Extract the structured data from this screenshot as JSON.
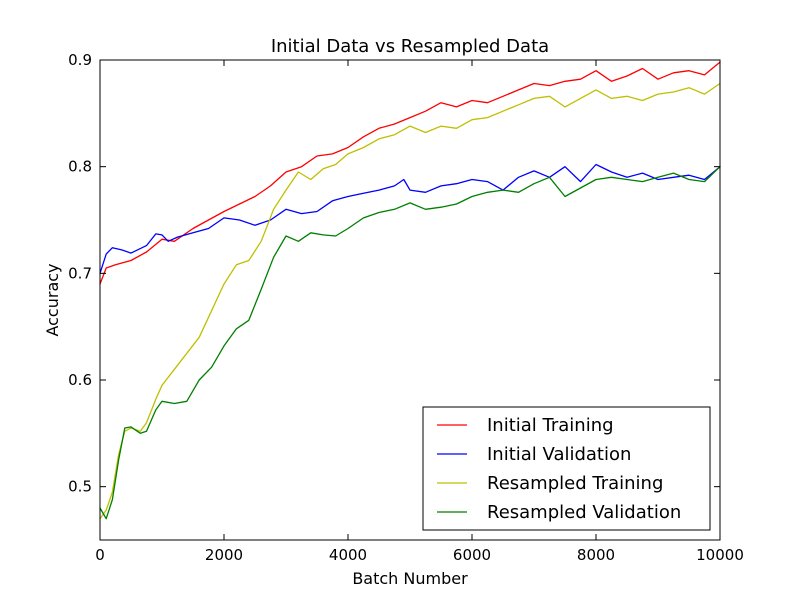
{
  "chart_data": {
    "type": "line",
    "title": "Initial Data vs Resampled Data",
    "xlabel": "Batch Number",
    "ylabel": "Accuracy",
    "xlim": [
      0,
      10000
    ],
    "ylim": [
      0.45,
      0.9
    ],
    "x_ticks": [
      0,
      2000,
      4000,
      6000,
      8000,
      10000
    ],
    "x_tick_labels": [
      "0",
      "2000",
      "4000",
      "6000",
      "8000",
      "10000"
    ],
    "y_ticks": [
      0.5,
      0.6,
      0.7,
      0.8,
      0.9
    ],
    "y_tick_labels": [
      "0.5",
      "0.6",
      "0.7",
      "0.8",
      "0.9"
    ],
    "grid": false,
    "legend_position": "lower-right",
    "series": [
      {
        "name": "Initial Training",
        "color": "#ff0000",
        "points": [
          [
            0,
            0.69
          ],
          [
            100,
            0.705
          ],
          [
            250,
            0.708
          ],
          [
            500,
            0.712
          ],
          [
            750,
            0.72
          ],
          [
            1000,
            0.732
          ],
          [
            1200,
            0.73
          ],
          [
            1500,
            0.742
          ],
          [
            1750,
            0.75
          ],
          [
            2000,
            0.758
          ],
          [
            2250,
            0.765
          ],
          [
            2500,
            0.772
          ],
          [
            2750,
            0.782
          ],
          [
            3000,
            0.795
          ],
          [
            3250,
            0.8
          ],
          [
            3500,
            0.81
          ],
          [
            3750,
            0.812
          ],
          [
            4000,
            0.818
          ],
          [
            4250,
            0.828
          ],
          [
            4500,
            0.836
          ],
          [
            4750,
            0.84
          ],
          [
            5000,
            0.846
          ],
          [
            5250,
            0.852
          ],
          [
            5500,
            0.86
          ],
          [
            5750,
            0.856
          ],
          [
            6000,
            0.862
          ],
          [
            6250,
            0.86
          ],
          [
            6500,
            0.866
          ],
          [
            6750,
            0.872
          ],
          [
            7000,
            0.878
          ],
          [
            7250,
            0.876
          ],
          [
            7500,
            0.88
          ],
          [
            7750,
            0.882
          ],
          [
            8000,
            0.89
          ],
          [
            8250,
            0.88
          ],
          [
            8500,
            0.885
          ],
          [
            8750,
            0.892
          ],
          [
            9000,
            0.882
          ],
          [
            9250,
            0.888
          ],
          [
            9500,
            0.89
          ],
          [
            9750,
            0.886
          ],
          [
            10000,
            0.898
          ]
        ]
      },
      {
        "name": "Initial Validation",
        "color": "#0000ff",
        "points": [
          [
            0,
            0.7
          ],
          [
            100,
            0.718
          ],
          [
            200,
            0.724
          ],
          [
            350,
            0.722
          ],
          [
            500,
            0.719
          ],
          [
            750,
            0.726
          ],
          [
            900,
            0.737
          ],
          [
            1000,
            0.736
          ],
          [
            1100,
            0.73
          ],
          [
            1250,
            0.734
          ],
          [
            1500,
            0.738
          ],
          [
            1750,
            0.742
          ],
          [
            2000,
            0.752
          ],
          [
            2250,
            0.75
          ],
          [
            2500,
            0.745
          ],
          [
            2750,
            0.75
          ],
          [
            3000,
            0.76
          ],
          [
            3250,
            0.756
          ],
          [
            3500,
            0.758
          ],
          [
            3750,
            0.768
          ],
          [
            4000,
            0.772
          ],
          [
            4250,
            0.775
          ],
          [
            4500,
            0.778
          ],
          [
            4750,
            0.782
          ],
          [
            4900,
            0.788
          ],
          [
            5000,
            0.778
          ],
          [
            5250,
            0.776
          ],
          [
            5500,
            0.782
          ],
          [
            5750,
            0.784
          ],
          [
            6000,
            0.788
          ],
          [
            6250,
            0.786
          ],
          [
            6500,
            0.778
          ],
          [
            6750,
            0.79
          ],
          [
            7000,
            0.796
          ],
          [
            7250,
            0.79
          ],
          [
            7500,
            0.8
          ],
          [
            7750,
            0.786
          ],
          [
            8000,
            0.802
          ],
          [
            8250,
            0.795
          ],
          [
            8500,
            0.79
          ],
          [
            8750,
            0.794
          ],
          [
            9000,
            0.788
          ],
          [
            9250,
            0.79
          ],
          [
            9500,
            0.792
          ],
          [
            9750,
            0.788
          ],
          [
            10000,
            0.8
          ]
        ]
      },
      {
        "name": "Resampled Training",
        "color": "#bfbf00",
        "points": [
          [
            0,
            0.47
          ],
          [
            100,
            0.478
          ],
          [
            200,
            0.495
          ],
          [
            300,
            0.53
          ],
          [
            400,
            0.552
          ],
          [
            500,
            0.555
          ],
          [
            650,
            0.552
          ],
          [
            750,
            0.56
          ],
          [
            900,
            0.582
          ],
          [
            1000,
            0.595
          ],
          [
            1200,
            0.61
          ],
          [
            1400,
            0.625
          ],
          [
            1600,
            0.64
          ],
          [
            1800,
            0.665
          ],
          [
            2000,
            0.69
          ],
          [
            2200,
            0.708
          ],
          [
            2400,
            0.712
          ],
          [
            2600,
            0.73
          ],
          [
            2800,
            0.76
          ],
          [
            3000,
            0.778
          ],
          [
            3200,
            0.795
          ],
          [
            3400,
            0.788
          ],
          [
            3600,
            0.798
          ],
          [
            3800,
            0.802
          ],
          [
            4000,
            0.812
          ],
          [
            4250,
            0.818
          ],
          [
            4500,
            0.826
          ],
          [
            4750,
            0.83
          ],
          [
            5000,
            0.838
          ],
          [
            5250,
            0.832
          ],
          [
            5500,
            0.838
          ],
          [
            5750,
            0.836
          ],
          [
            6000,
            0.844
          ],
          [
            6250,
            0.846
          ],
          [
            6500,
            0.852
          ],
          [
            6750,
            0.858
          ],
          [
            7000,
            0.864
          ],
          [
            7250,
            0.866
          ],
          [
            7500,
            0.856
          ],
          [
            7750,
            0.864
          ],
          [
            8000,
            0.872
          ],
          [
            8250,
            0.864
          ],
          [
            8500,
            0.866
          ],
          [
            8750,
            0.862
          ],
          [
            9000,
            0.868
          ],
          [
            9250,
            0.87
          ],
          [
            9500,
            0.874
          ],
          [
            9750,
            0.868
          ],
          [
            10000,
            0.878
          ]
        ]
      },
      {
        "name": "Resampled Validation",
        "color": "#007f00",
        "points": [
          [
            0,
            0.48
          ],
          [
            100,
            0.47
          ],
          [
            200,
            0.488
          ],
          [
            300,
            0.525
          ],
          [
            400,
            0.555
          ],
          [
            500,
            0.556
          ],
          [
            650,
            0.55
          ],
          [
            750,
            0.552
          ],
          [
            900,
            0.572
          ],
          [
            1000,
            0.58
          ],
          [
            1200,
            0.578
          ],
          [
            1400,
            0.58
          ],
          [
            1600,
            0.6
          ],
          [
            1800,
            0.612
          ],
          [
            2000,
            0.632
          ],
          [
            2200,
            0.648
          ],
          [
            2400,
            0.656
          ],
          [
            2600,
            0.685
          ],
          [
            2800,
            0.715
          ],
          [
            3000,
            0.735
          ],
          [
            3200,
            0.73
          ],
          [
            3400,
            0.738
          ],
          [
            3600,
            0.736
          ],
          [
            3800,
            0.735
          ],
          [
            4000,
            0.742
          ],
          [
            4250,
            0.752
          ],
          [
            4500,
            0.757
          ],
          [
            4750,
            0.76
          ],
          [
            5000,
            0.766
          ],
          [
            5250,
            0.76
          ],
          [
            5500,
            0.762
          ],
          [
            5750,
            0.765
          ],
          [
            6000,
            0.772
          ],
          [
            6250,
            0.776
          ],
          [
            6500,
            0.778
          ],
          [
            6750,
            0.776
          ],
          [
            7000,
            0.784
          ],
          [
            7250,
            0.79
          ],
          [
            7500,
            0.772
          ],
          [
            7750,
            0.78
          ],
          [
            8000,
            0.788
          ],
          [
            8250,
            0.79
          ],
          [
            8500,
            0.788
          ],
          [
            8750,
            0.786
          ],
          [
            9000,
            0.79
          ],
          [
            9250,
            0.794
          ],
          [
            9500,
            0.788
          ],
          [
            9750,
            0.786
          ],
          [
            10000,
            0.8
          ]
        ]
      }
    ]
  }
}
